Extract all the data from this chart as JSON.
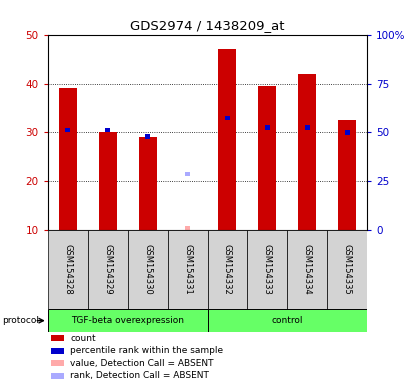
{
  "title": "GDS2974 / 1438209_at",
  "samples": [
    "GSM154328",
    "GSM154329",
    "GSM154330",
    "GSM154331",
    "GSM154332",
    "GSM154333",
    "GSM154334",
    "GSM154335"
  ],
  "red_bar_heights": [
    39,
    30,
    29,
    null,
    47,
    39.5,
    42,
    32.5
  ],
  "blue_square_y": [
    30.5,
    30.5,
    29.2,
    null,
    33,
    31,
    31,
    30
  ],
  "absent_value_y": [
    null,
    null,
    null,
    11,
    null,
    null,
    null,
    null
  ],
  "absent_rank_y": [
    null,
    null,
    null,
    21.5,
    null,
    null,
    null,
    null
  ],
  "groups": [
    {
      "label": "TGF-beta overexpression",
      "samples": 4
    },
    {
      "label": "control",
      "samples": 4
    }
  ],
  "ylim_left": [
    10,
    50
  ],
  "ylim_right": [
    0,
    100
  ],
  "yticks_left": [
    10,
    20,
    30,
    40,
    50
  ],
  "yticks_right": [
    0,
    25,
    50,
    75,
    100
  ],
  "ytick_labels_right": [
    "0",
    "25",
    "50",
    "75",
    "100%"
  ],
  "red_bar_color": "#cc0000",
  "blue_square_color": "#0000cc",
  "absent_value_color": "#ffaaaa",
  "absent_rank_color": "#aaaaff",
  "bar_width": 0.45,
  "legend_items": [
    {
      "color": "#cc0000",
      "label": "count"
    },
    {
      "color": "#0000cc",
      "label": "percentile rank within the sample"
    },
    {
      "color": "#ffaaaa",
      "label": "value, Detection Call = ABSENT"
    },
    {
      "color": "#aaaaff",
      "label": "rank, Detection Call = ABSENT"
    }
  ],
  "tick_label_color_left": "#cc0000",
  "tick_label_color_right": "#0000cc",
  "label_area_color": "#d3d3d3",
  "group_color": "#66ff66",
  "protocol_label": "protocol"
}
